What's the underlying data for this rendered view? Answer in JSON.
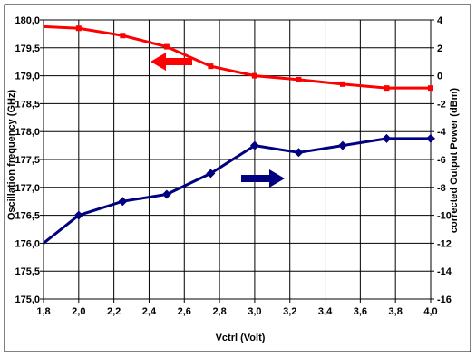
{
  "chart_data": {
    "type": "line",
    "x": [
      1.8,
      2.0,
      2.25,
      2.5,
      2.75,
      3.0,
      3.25,
      3.5,
      3.75,
      4.0
    ],
    "xlabel": "Vctrl (Volt)",
    "ylabel": "Oscillation frequency (GHz)",
    "y2label": "corrected Output Power (dBm)",
    "xlim": [
      1.8,
      4.0
    ],
    "ylim": [
      175.0,
      180.0
    ],
    "y2lim": [
      -16,
      4
    ],
    "x_ticks": [
      "1,8",
      "2,0",
      "2,2",
      "2,4",
      "2,6",
      "2,8",
      "3,0",
      "3,2",
      "3,4",
      "3,6",
      "3,8",
      "4,0"
    ],
    "y_ticks": [
      "175,0",
      "175,5",
      "176,0",
      "176,5",
      "177,0",
      "177,5",
      "178,0",
      "178,5",
      "179,0",
      "179,5",
      "180,0"
    ],
    "y2_ticks": [
      "-16",
      "-14",
      "-12",
      "-10",
      "-8",
      "-6",
      "-4",
      "-2",
      "0",
      "2",
      "4"
    ],
    "grid": true,
    "series": [
      {
        "axis": "left",
        "color": "#ff0000",
        "marker": "square",
        "values": [
          179.88,
          179.85,
          179.72,
          179.52,
          179.17,
          179.0,
          178.93,
          178.85,
          178.78,
          178.78
        ]
      },
      {
        "axis": "right",
        "color": "#000080",
        "marker": "diamond",
        "values": [
          -12.0,
          -10.0,
          -9.0,
          -8.5,
          -7.0,
          -5.0,
          -5.5,
          -5.0,
          -4.5,
          -4.5
        ]
      }
    ],
    "annotations": [
      {
        "type": "arrow",
        "direction": "left",
        "color": "#ff0000",
        "points_to": "left-axis"
      },
      {
        "type": "arrow",
        "direction": "right",
        "color": "#000080",
        "points_to": "right-axis"
      }
    ]
  }
}
